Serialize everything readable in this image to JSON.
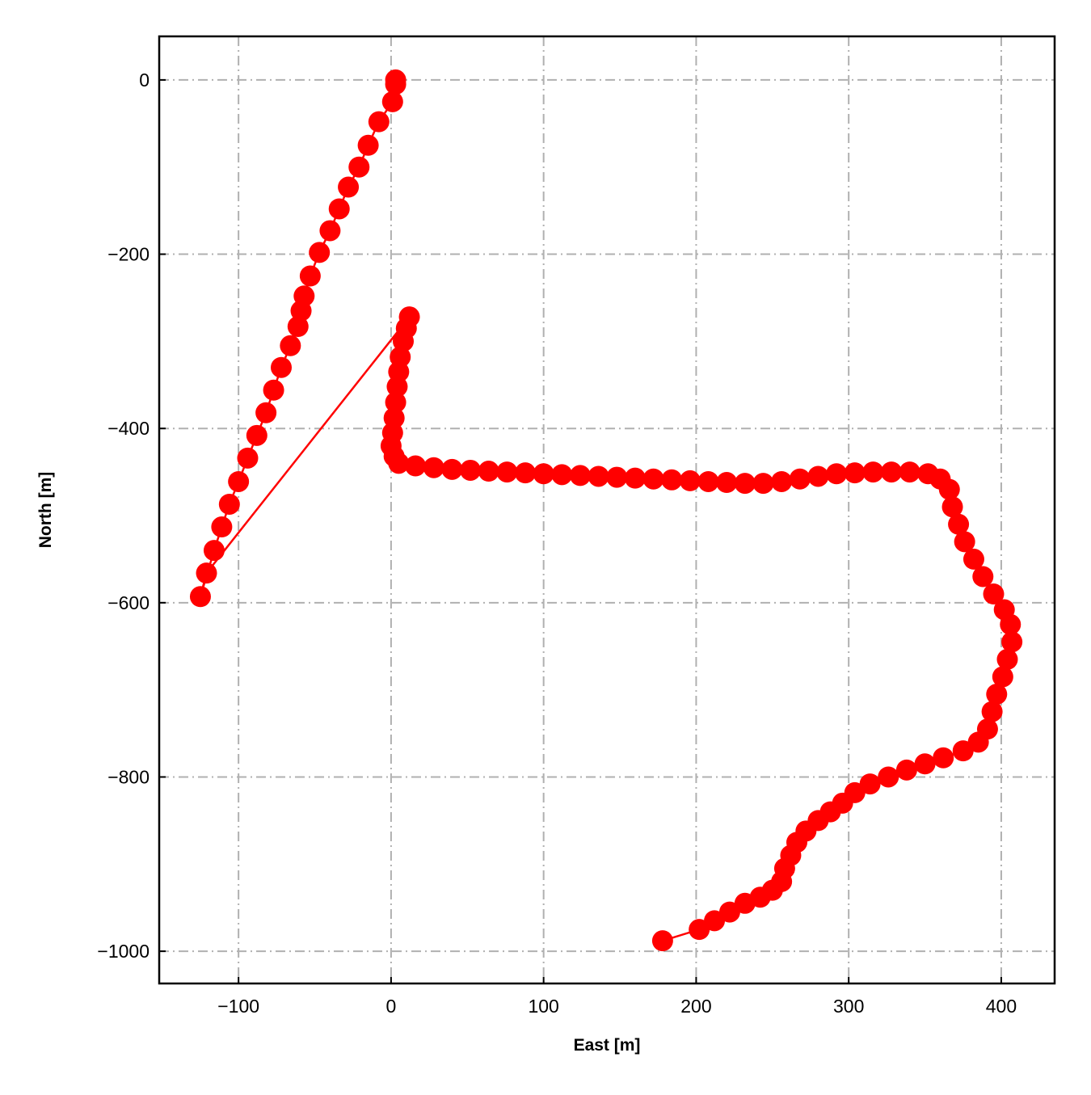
{
  "chart_data": {
    "type": "line",
    "xlabel": "East [m]",
    "ylabel": "North [m]",
    "color": "#ff0000",
    "markers": true,
    "grid": true,
    "x": [
      3,
      3,
      1,
      -8,
      -15,
      -21,
      -28,
      -34,
      -40,
      -47,
      -53,
      -57,
      -59,
      -61,
      -66,
      -72,
      -77,
      -82,
      -88,
      -94,
      -100,
      -106,
      -111,
      -116,
      -125,
      -121,
      12,
      10,
      8,
      6,
      5,
      4,
      3,
      2,
      1,
      0,
      2,
      5,
      16,
      28,
      40,
      52,
      64,
      76,
      88,
      100,
      112,
      124,
      136,
      148,
      160,
      172,
      184,
      196,
      208,
      220,
      232,
      244,
      256,
      268,
      280,
      292,
      304,
      316,
      328,
      340,
      352,
      360,
      366,
      368,
      372,
      376,
      382,
      388,
      395,
      402,
      406,
      407,
      404,
      401,
      397,
      394,
      391,
      385,
      375,
      362,
      350,
      338,
      326,
      314,
      304,
      296,
      288,
      280,
      272,
      266,
      262,
      258,
      256,
      250,
      242,
      232,
      222,
      212,
      202,
      178
    ],
    "values": [
      0,
      -5,
      -25,
      -48,
      -75,
      -100,
      -123,
      -148,
      -173,
      -198,
      -225,
      -248,
      -265,
      -283,
      -305,
      -330,
      -356,
      -382,
      -408,
      -434,
      -461,
      -487,
      -513,
      -540,
      -593,
      -566,
      -272,
      -285,
      -300,
      -318,
      -335,
      -352,
      -370,
      -388,
      -405,
      -420,
      -432,
      -440,
      -443,
      -445,
      -447,
      -448,
      -449,
      -450,
      -451,
      -452,
      -453,
      -454,
      -455,
      -456,
      -457,
      -458,
      -459,
      -460,
      -461,
      -462,
      -463,
      -463,
      -461,
      -458,
      -455,
      -452,
      -451,
      -450,
      -450,
      -450,
      -452,
      -458,
      -470,
      -490,
      -510,
      -530,
      -550,
      -570,
      -590,
      -608,
      -625,
      -645,
      -665,
      -685,
      -705,
      -725,
      -745,
      -760,
      -770,
      -778,
      -785,
      -792,
      -800,
      -808,
      -818,
      -830,
      -840,
      -850,
      -862,
      -875,
      -890,
      -905,
      -920,
      -930,
      -938,
      -945,
      -955,
      -965,
      -975,
      -988
    ],
    "xlim": [
      -152,
      435
    ],
    "ylim": [
      -1037,
      50
    ],
    "xticks": [
      {
        "value": -100,
        "label": "−100"
      },
      0,
      100,
      200,
      300,
      400
    ],
    "yticks": [
      0,
      {
        "value": -200,
        "label": "−200"
      },
      {
        "value": -400,
        "label": "−400"
      },
      {
        "value": -600,
        "label": "−600"
      },
      {
        "value": -800,
        "label": "−800"
      },
      {
        "value": -1000,
        "label": "−1000"
      }
    ]
  }
}
